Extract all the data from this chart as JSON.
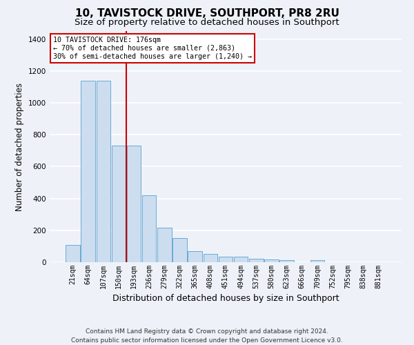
{
  "title": "10, TAVISTOCK DRIVE, SOUTHPORT, PR8 2RU",
  "subtitle": "Size of property relative to detached houses in Southport",
  "xlabel": "Distribution of detached houses by size in Southport",
  "ylabel": "Number of detached properties",
  "categories": [
    "21sqm",
    "64sqm",
    "107sqm",
    "150sqm",
    "193sqm",
    "236sqm",
    "279sqm",
    "322sqm",
    "365sqm",
    "408sqm",
    "451sqm",
    "494sqm",
    "537sqm",
    "580sqm",
    "623sqm",
    "666sqm",
    "709sqm",
    "752sqm",
    "795sqm",
    "838sqm",
    "881sqm"
  ],
  "values": [
    107,
    1140,
    1140,
    730,
    730,
    420,
    215,
    150,
    70,
    52,
    35,
    35,
    22,
    18,
    14,
    0,
    13,
    0,
    0,
    0,
    0
  ],
  "bar_color": "#ccddf0",
  "bar_edge_color": "#6aaad4",
  "vline_x": 3.5,
  "vline_color": "#cc0000",
  "annotation_line1": "10 TAVISTOCK DRIVE: 176sqm",
  "annotation_line2": "← 70% of detached houses are smaller (2,863)",
  "annotation_line3": "30% of semi-detached houses are larger (1,240) →",
  "annotation_box_color": "#ffffff",
  "annotation_box_edge_color": "#cc0000",
  "footnote": "Contains HM Land Registry data © Crown copyright and database right 2024.\nContains public sector information licensed under the Open Government Licence v3.0.",
  "ylim": [
    0,
    1450
  ],
  "yticks": [
    0,
    200,
    400,
    600,
    800,
    1000,
    1200,
    1400
  ],
  "background_color": "#eef2f8",
  "plot_bg_color": "#eef2f8",
  "grid_color": "#ffffff",
  "title_fontsize": 11,
  "subtitle_fontsize": 9.5,
  "xlabel_fontsize": 9,
  "ylabel_fontsize": 8.5,
  "tick_fontsize": 7,
  "footnote_fontsize": 6.5
}
